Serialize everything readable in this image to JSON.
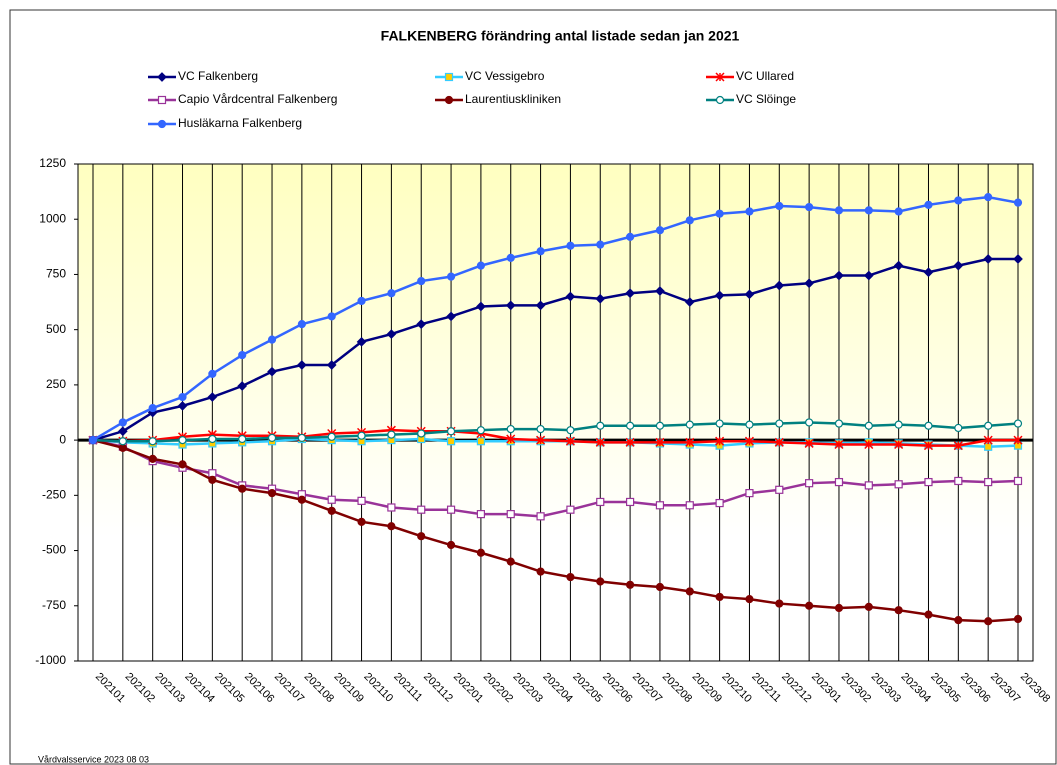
{
  "chart_data": {
    "type": "line",
    "title": "FALKENBERG förändring antal listade sedan jan 2021",
    "footer": "Vårdvalsservice 2023 08 03",
    "categories": [
      "202101",
      "202102",
      "202103",
      "202104",
      "202105",
      "202106",
      "202107",
      "202108",
      "202109",
      "202110",
      "202111",
      "202112",
      "202201",
      "202202",
      "202203",
      "202204",
      "202205",
      "202206",
      "202207",
      "202208",
      "202209",
      "202210",
      "202211",
      "202212",
      "202301",
      "202302",
      "202303",
      "202304",
      "202305",
      "202306",
      "202307",
      "202308"
    ],
    "ylim": [
      -1000,
      1250
    ],
    "yticks": [
      -1000,
      -750,
      -500,
      -250,
      0,
      250,
      500,
      750,
      1000,
      1250
    ],
    "grid": "vertical",
    "series": [
      {
        "name": "VC Falkenberg",
        "color": "#000080",
        "marker": "diamond",
        "marker_fill": "#000080",
        "values": [
          0,
          40,
          125,
          155,
          195,
          245,
          310,
          340,
          340,
          445,
          480,
          525,
          560,
          605,
          610,
          610,
          650,
          640,
          665,
          675,
          625,
          655,
          660,
          700,
          710,
          745,
          745,
          790,
          760,
          790,
          820,
          820
        ]
      },
      {
        "name": "VC Vessigebro",
        "color": "#33ccff",
        "marker": "square",
        "marker_fill": "#ffcc00",
        "values": [
          0,
          -10,
          -15,
          -20,
          -15,
          -10,
          -5,
          5,
          0,
          -5,
          0,
          5,
          -5,
          -5,
          -5,
          -5,
          -5,
          -10,
          -10,
          -15,
          -20,
          -25,
          -15,
          -10,
          -10,
          -15,
          -10,
          -15,
          -20,
          -25,
          -30,
          -25
        ]
      },
      {
        "name": "VC Ullared",
        "color": "#ff0000",
        "marker": "star",
        "marker_fill": "#ff0000",
        "values": [
          0,
          -5,
          0,
          15,
          25,
          20,
          20,
          15,
          30,
          35,
          45,
          40,
          40,
          30,
          5,
          0,
          -5,
          -10,
          -10,
          -10,
          -10,
          -5,
          -5,
          -10,
          -15,
          -20,
          -20,
          -20,
          -25,
          -25,
          0,
          0
        ]
      },
      {
        "name": "Capio Vårdcentral Falkenberg",
        "color": "#993399",
        "marker": "square",
        "marker_fill": "#ffffff",
        "values": [
          0,
          -30,
          -95,
          -125,
          -150,
          -205,
          -220,
          -245,
          -270,
          -275,
          -305,
          -315,
          -315,
          -335,
          -335,
          -345,
          -315,
          -280,
          -280,
          -295,
          -295,
          -285,
          -240,
          -225,
          -195,
          -190,
          -205,
          -200,
          -190,
          -185,
          -190,
          -185
        ]
      },
      {
        "name": "Laurentiuskliniken",
        "color": "#800000",
        "marker": "circle",
        "marker_fill": "#800000",
        "values": [
          0,
          -35,
          -85,
          -110,
          -180,
          -220,
          -240,
          -270,
          -320,
          -370,
          -390,
          -435,
          -475,
          -510,
          -550,
          -595,
          -620,
          -640,
          -655,
          -665,
          -685,
          -710,
          -720,
          -740,
          -750,
          -760,
          -755,
          -770,
          -790,
          -815,
          -820,
          -810
        ]
      },
      {
        "name": "VC Slöinge",
        "color": "#008080",
        "marker": "circle",
        "marker_fill": "#ffffff",
        "values": [
          0,
          -5,
          -5,
          0,
          5,
          5,
          10,
          10,
          15,
          20,
          25,
          30,
          40,
          45,
          50,
          50,
          45,
          65,
          65,
          65,
          70,
          75,
          70,
          75,
          80,
          75,
          65,
          70,
          65,
          55,
          65,
          75
        ]
      },
      {
        "name": "Husläkarna Falkenberg",
        "color": "#3366ff",
        "marker": "circle",
        "marker_fill": "#3366ff",
        "values": [
          0,
          80,
          145,
          195,
          300,
          385,
          455,
          525,
          560,
          630,
          665,
          720,
          740,
          790,
          825,
          855,
          880,
          885,
          920,
          950,
          995,
          1025,
          1035,
          1060,
          1055,
          1040,
          1040,
          1035,
          1065,
          1085,
          1100,
          1075
        ]
      }
    ]
  }
}
